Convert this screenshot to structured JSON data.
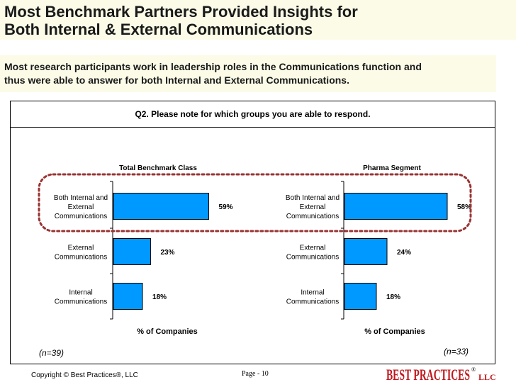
{
  "slide": {
    "title_lines": [
      "Most Benchmark Partners Provided Insights for",
      "Both Internal & External Communications"
    ],
    "subtitle_lines": [
      "Most research participants work in leadership roles in the Communications function and",
      "thus were able to answer for both Internal and External Communications."
    ]
  },
  "chart_data": [
    {
      "type": "bar",
      "orientation": "horizontal",
      "title": "Total Benchmark Class",
      "question": "Q2. Please note for which groups you are able to respond.",
      "categories": [
        [
          "Both Internal and",
          "External",
          "Communications"
        ],
        [
          "External",
          "Communications"
        ],
        [
          "Internal",
          "Communications"
        ]
      ],
      "values": [
        59,
        23,
        18
      ],
      "value_labels": [
        "59%",
        "23%",
        "18%"
      ],
      "xlabel": "% of Companies",
      "xlim": [
        0,
        100
      ],
      "sample_size": "(n=39)",
      "bar_color": "#0099ff",
      "grid": false
    },
    {
      "type": "bar",
      "orientation": "horizontal",
      "title": "Pharma Segment",
      "categories": [
        [
          "Both Internal and",
          "External",
          "Communications"
        ],
        [
          "External",
          "Communications"
        ],
        [
          "Internal",
          "Communications"
        ]
      ],
      "values": [
        58,
        24,
        18
      ],
      "value_labels": [
        "58%",
        "24%",
        "18%"
      ],
      "xlabel": "% of Companies",
      "xlim": [
        0,
        100
      ],
      "sample_size": "(n=33)",
      "bar_color": "#0099ff",
      "grid": false
    }
  ],
  "highlight": {
    "color": "#993333",
    "style": "dotted",
    "target": "Both Internal and External Communications"
  },
  "footer": {
    "copyright": "Copyright ©  Best Practices®, LLC",
    "page": "Page - 10",
    "logo_text": "BEST PRACTICES",
    "logo_suffix": "LLC",
    "logo_mark": "®",
    "logo_color": "#c0181e"
  }
}
